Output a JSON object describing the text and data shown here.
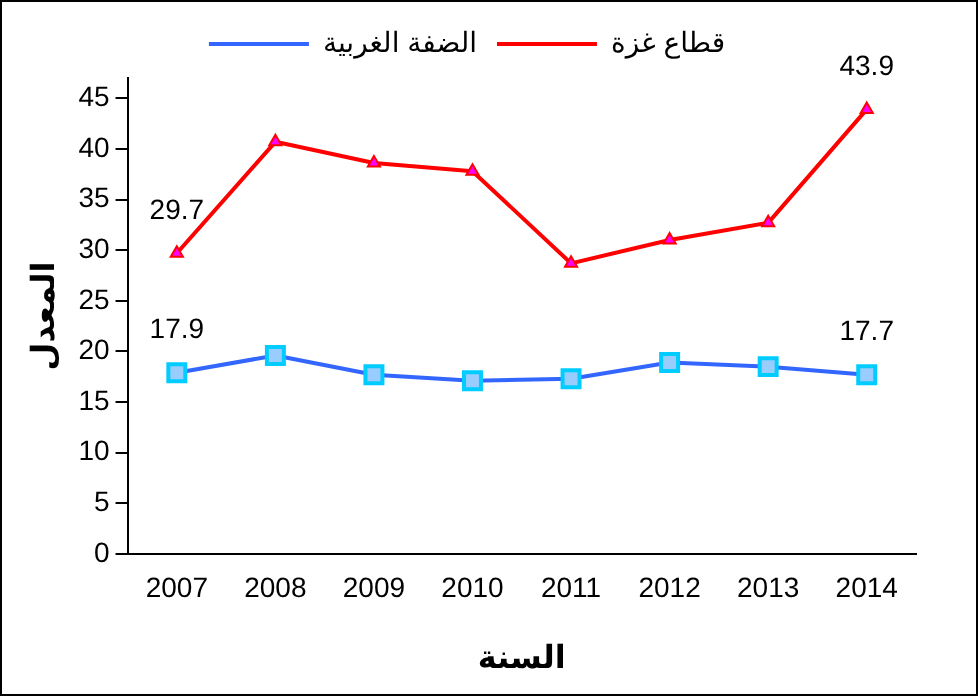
{
  "chart_data": {
    "type": "line",
    "xlabel": "السنة",
    "ylabel": "المعدل",
    "categories": [
      "2007",
      "2008",
      "2009",
      "2010",
      "2011",
      "2012",
      "2013",
      "2014"
    ],
    "series": [
      {
        "name": "الضفة الغربية",
        "color": "#3366ff",
        "marker": "square",
        "values": [
          17.9,
          19.6,
          17.7,
          17.1,
          17.3,
          18.9,
          18.5,
          17.7
        ],
        "value_labels": [
          "17.9",
          null,
          null,
          null,
          null,
          null,
          null,
          "17.7"
        ]
      },
      {
        "name": "قطاع غزة",
        "color": "#ff0000",
        "marker": "triangle",
        "values": [
          29.7,
          40.7,
          38.6,
          37.8,
          28.7,
          31.0,
          32.7,
          43.9
        ],
        "value_labels": [
          "29.7",
          null,
          null,
          null,
          null,
          null,
          null,
          "43.9"
        ]
      }
    ],
    "ylim": [
      0,
      47
    ],
    "yticks": [
      0,
      5,
      10,
      15,
      20,
      25,
      30,
      35,
      40,
      45
    ],
    "grid": false,
    "legend": "top"
  }
}
